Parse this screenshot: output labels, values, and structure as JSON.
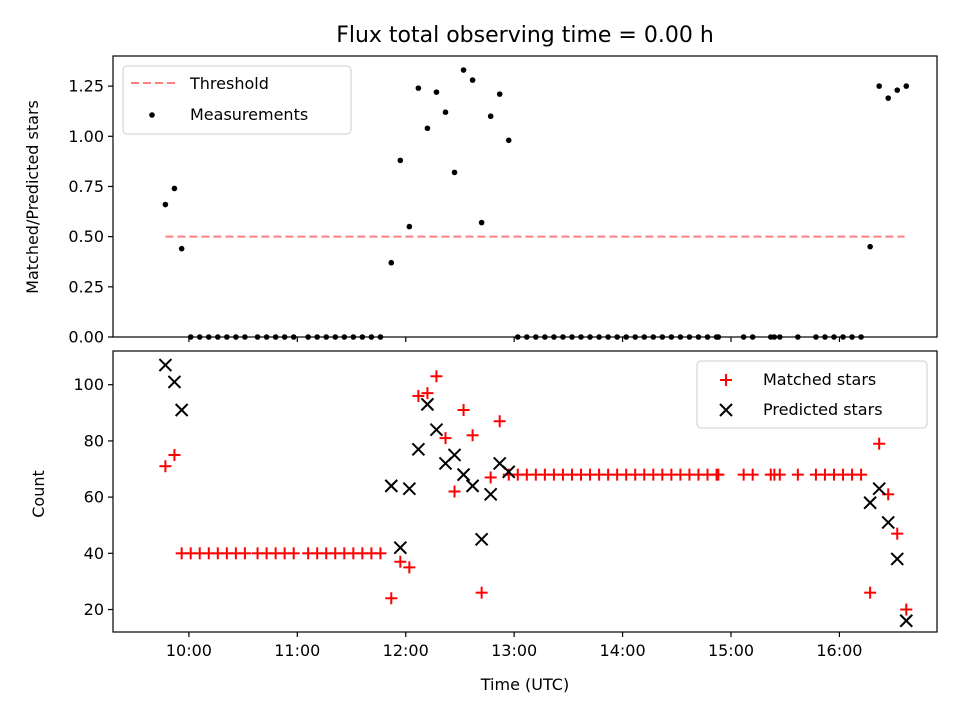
{
  "chart_data": [
    {
      "type": "scatter",
      "title": "Flux total observing time = 0.00 h",
      "xlabel": "",
      "ylabel": "Matched/Predicted stars",
      "ylim": [
        0,
        1.4
      ],
      "xlim_hours": [
        9.3,
        16.9
      ],
      "yticks": [
        "0.00",
        "0.25",
        "0.50",
        "0.75",
        "1.00",
        "1.25"
      ],
      "ytick_values": [
        0,
        0.25,
        0.5,
        0.75,
        1.0,
        1.25
      ],
      "grid": false,
      "legend_position": "top-left",
      "threshold": {
        "name": "Threshold",
        "value": 0.5,
        "x_range": [
          "09:47",
          "16:36"
        ],
        "color": "#ff7f7f",
        "style": "dashed"
      },
      "series": [
        {
          "name": "Measurements",
          "color": "#000000",
          "marker": "dot",
          "points": [
            [
              "09:47",
              0.66
            ],
            [
              "09:52",
              0.74
            ],
            [
              "09:56",
              0.44
            ],
            [
              "10:01",
              0.0
            ],
            [
              "10:06",
              0.0
            ],
            [
              "10:11",
              0.0
            ],
            [
              "10:16",
              0.0
            ],
            [
              "10:21",
              0.0
            ],
            [
              "10:26",
              0.0
            ],
            [
              "10:31",
              0.0
            ],
            [
              "10:38",
              0.0
            ],
            [
              "10:43",
              0.0
            ],
            [
              "10:48",
              0.0
            ],
            [
              "10:53",
              0.0
            ],
            [
              "10:58",
              0.0
            ],
            [
              "11:06",
              0.0
            ],
            [
              "11:11",
              0.0
            ],
            [
              "11:16",
              0.0
            ],
            [
              "11:21",
              0.0
            ],
            [
              "11:26",
              0.0
            ],
            [
              "11:31",
              0.0
            ],
            [
              "11:36",
              0.0
            ],
            [
              "11:41",
              0.0
            ],
            [
              "11:46",
              0.0
            ],
            [
              "11:52",
              0.37
            ],
            [
              "11:57",
              0.88
            ],
            [
              "12:02",
              0.55
            ],
            [
              "12:07",
              1.24
            ],
            [
              "12:12",
              1.04
            ],
            [
              "12:17",
              1.22
            ],
            [
              "12:22",
              1.12
            ],
            [
              "12:27",
              0.82
            ],
            [
              "12:32",
              1.33
            ],
            [
              "12:37",
              1.28
            ],
            [
              "12:42",
              0.57
            ],
            [
              "12:47",
              1.1
            ],
            [
              "12:52",
              1.21
            ],
            [
              "12:57",
              0.98
            ],
            [
              "13:02",
              0.0
            ],
            [
              "13:07",
              0.0
            ],
            [
              "13:12",
              0.0
            ],
            [
              "13:17",
              0.0
            ],
            [
              "13:22",
              0.0
            ],
            [
              "13:27",
              0.0
            ],
            [
              "13:32",
              0.0
            ],
            [
              "13:37",
              0.0
            ],
            [
              "13:42",
              0.0
            ],
            [
              "13:47",
              0.0
            ],
            [
              "13:52",
              0.0
            ],
            [
              "13:57",
              0.0
            ],
            [
              "14:02",
              0.0
            ],
            [
              "14:07",
              0.0
            ],
            [
              "14:12",
              0.0
            ],
            [
              "14:17",
              0.0
            ],
            [
              "14:22",
              0.0
            ],
            [
              "14:27",
              0.0
            ],
            [
              "14:32",
              0.0
            ],
            [
              "14:37",
              0.0
            ],
            [
              "14:42",
              0.0
            ],
            [
              "14:47",
              0.0
            ],
            [
              "14:52",
              0.0
            ],
            [
              "14:53",
              0.0
            ],
            [
              "15:07",
              0.0
            ],
            [
              "15:12",
              0.0
            ],
            [
              "15:22",
              0.0
            ],
            [
              "15:24",
              0.0
            ],
            [
              "15:27",
              0.0
            ],
            [
              "15:37",
              0.0
            ],
            [
              "15:47",
              0.0
            ],
            [
              "15:52",
              0.0
            ],
            [
              "15:57",
              0.0
            ],
            [
              "16:02",
              0.0
            ],
            [
              "16:07",
              0.0
            ],
            [
              "16:12",
              0.0
            ],
            [
              "16:17",
              0.45
            ],
            [
              "16:22",
              1.25
            ],
            [
              "16:27",
              1.19
            ],
            [
              "16:32",
              1.23
            ],
            [
              "16:37",
              1.25
            ]
          ]
        }
      ]
    },
    {
      "type": "scatter",
      "title": "",
      "xlabel": "Time (UTC)",
      "ylabel": "Count",
      "ylim": [
        12,
        112
      ],
      "xlim_hours": [
        9.3,
        16.9
      ],
      "yticks": [
        "20",
        "40",
        "60",
        "80",
        "100"
      ],
      "ytick_values": [
        20,
        40,
        60,
        80,
        100
      ],
      "xticks": [
        "10:00",
        "11:00",
        "12:00",
        "13:00",
        "14:00",
        "15:00",
        "16:00"
      ],
      "xtick_values": [
        "10:00",
        "11:00",
        "12:00",
        "13:00",
        "14:00",
        "15:00",
        "16:00"
      ],
      "grid": false,
      "legend_position": "top-right",
      "series": [
        {
          "name": "Matched stars",
          "color": "#ff0000",
          "marker": "plus",
          "points": [
            [
              "09:47",
              71
            ],
            [
              "09:52",
              75
            ],
            [
              "09:56",
              40
            ],
            [
              "10:01",
              40
            ],
            [
              "10:06",
              40
            ],
            [
              "10:11",
              40
            ],
            [
              "10:16",
              40
            ],
            [
              "10:21",
              40
            ],
            [
              "10:26",
              40
            ],
            [
              "10:31",
              40
            ],
            [
              "10:38",
              40
            ],
            [
              "10:43",
              40
            ],
            [
              "10:48",
              40
            ],
            [
              "10:53",
              40
            ],
            [
              "10:58",
              40
            ],
            [
              "11:06",
              40
            ],
            [
              "11:11",
              40
            ],
            [
              "11:16",
              40
            ],
            [
              "11:21",
              40
            ],
            [
              "11:26",
              40
            ],
            [
              "11:31",
              40
            ],
            [
              "11:36",
              40
            ],
            [
              "11:41",
              40
            ],
            [
              "11:46",
              40
            ],
            [
              "11:52",
              24
            ],
            [
              "11:57",
              37
            ],
            [
              "12:02",
              35
            ],
            [
              "12:07",
              96
            ],
            [
              "12:12",
              97
            ],
            [
              "12:17",
              103
            ],
            [
              "12:22",
              81
            ],
            [
              "12:27",
              62
            ],
            [
              "12:32",
              91
            ],
            [
              "12:37",
              82
            ],
            [
              "12:42",
              26
            ],
            [
              "12:47",
              67
            ],
            [
              "12:52",
              87
            ],
            [
              "12:57",
              68
            ],
            [
              "13:02",
              68
            ],
            [
              "13:07",
              68
            ],
            [
              "13:12",
              68
            ],
            [
              "13:17",
              68
            ],
            [
              "13:22",
              68
            ],
            [
              "13:27",
              68
            ],
            [
              "13:32",
              68
            ],
            [
              "13:37",
              68
            ],
            [
              "13:42",
              68
            ],
            [
              "13:47",
              68
            ],
            [
              "13:52",
              68
            ],
            [
              "13:57",
              68
            ],
            [
              "14:02",
              68
            ],
            [
              "14:07",
              68
            ],
            [
              "14:12",
              68
            ],
            [
              "14:17",
              68
            ],
            [
              "14:22",
              68
            ],
            [
              "14:27",
              68
            ],
            [
              "14:32",
              68
            ],
            [
              "14:37",
              68
            ],
            [
              "14:42",
              68
            ],
            [
              "14:47",
              68
            ],
            [
              "14:52",
              68
            ],
            [
              "14:53",
              68
            ],
            [
              "15:07",
              68
            ],
            [
              "15:12",
              68
            ],
            [
              "15:22",
              68
            ],
            [
              "15:24",
              68
            ],
            [
              "15:27",
              68
            ],
            [
              "15:37",
              68
            ],
            [
              "15:47",
              68
            ],
            [
              "15:52",
              68
            ],
            [
              "15:57",
              68
            ],
            [
              "16:02",
              68
            ],
            [
              "16:07",
              68
            ],
            [
              "16:12",
              68
            ],
            [
              "16:17",
              26
            ],
            [
              "16:22",
              79
            ],
            [
              "16:27",
              61
            ],
            [
              "16:32",
              47
            ],
            [
              "16:37",
              20
            ]
          ]
        },
        {
          "name": "Predicted stars",
          "color": "#000000",
          "marker": "x",
          "points": [
            [
              "09:47",
              107
            ],
            [
              "09:52",
              101
            ],
            [
              "09:56",
              91
            ],
            [
              "11:52",
              64
            ],
            [
              "11:57",
              42
            ],
            [
              "12:02",
              63
            ],
            [
              "12:07",
              77
            ],
            [
              "12:12",
              93
            ],
            [
              "12:17",
              84
            ],
            [
              "12:22",
              72
            ],
            [
              "12:27",
              75
            ],
            [
              "12:32",
              68
            ],
            [
              "12:37",
              64
            ],
            [
              "12:42",
              45
            ],
            [
              "12:47",
              61
            ],
            [
              "12:52",
              72
            ],
            [
              "12:57",
              69
            ],
            [
              "16:17",
              58
            ],
            [
              "16:22",
              63
            ],
            [
              "16:27",
              51
            ],
            [
              "16:32",
              38
            ],
            [
              "16:37",
              16
            ]
          ]
        }
      ]
    }
  ]
}
